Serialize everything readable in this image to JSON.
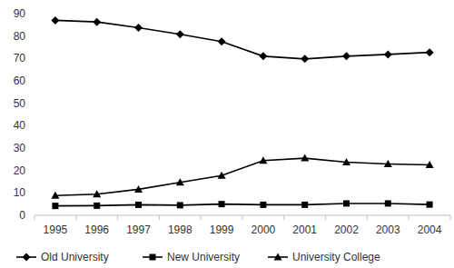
{
  "chart_data": {
    "type": "line",
    "categories": [
      "1995",
      "1996",
      "1997",
      "1998",
      "1999",
      "2000",
      "2001",
      "2002",
      "2003",
      "2004"
    ],
    "series": [
      {
        "name": "Old University",
        "color": "#000000",
        "marker": "diamond",
        "line_style": "solid",
        "values": [
          87,
          86.3,
          83.7,
          80.8,
          77.5,
          71,
          69.8,
          71,
          71.8,
          72.7
        ]
      },
      {
        "name": "New University",
        "color": "#000000",
        "marker": "square",
        "line_style": "solid",
        "values": [
          4.2,
          4.3,
          4.7,
          4.5,
          5,
          4.7,
          4.7,
          5.3,
          5.3,
          4.8
        ]
      },
      {
        "name": "University College",
        "color": "#000000",
        "marker": "triangle",
        "line_style": "solid",
        "values": [
          8.8,
          9.4,
          11.6,
          14.7,
          17.7,
          24.4,
          25.5,
          23.7,
          22.9,
          22.5
        ]
      }
    ],
    "ylim": [
      0,
      90
    ],
    "yticks": [
      0,
      10,
      20,
      30,
      40,
      50,
      60,
      70,
      80,
      90
    ],
    "grid": false,
    "legend": "bottom"
  }
}
